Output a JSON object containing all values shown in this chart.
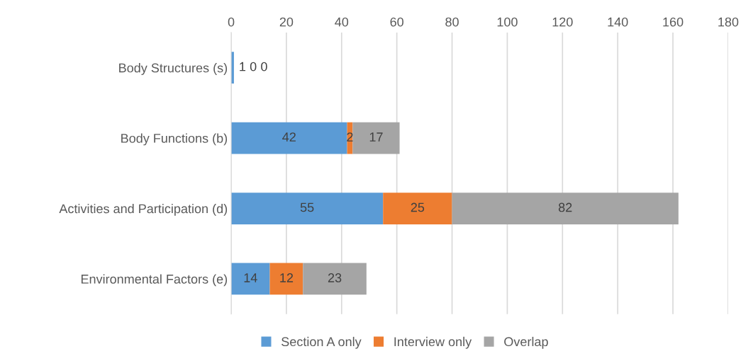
{
  "chart_data": {
    "type": "bar",
    "orientation": "horizontal",
    "stacked": true,
    "categories": [
      "Body Structures (s)",
      "Body Functions (b)",
      "Activities and Participation (d)",
      "Environmental Factors (e)"
    ],
    "series": [
      {
        "name": "Section A only",
        "color": "#5b9bd5",
        "values": [
          1,
          42,
          55,
          14
        ]
      },
      {
        "name": "Interview only",
        "color": "#ed7d31",
        "values": [
          0,
          2,
          25,
          12
        ]
      },
      {
        "name": "Overlap",
        "color": "#a5a5a5",
        "values": [
          0,
          17,
          82,
          23
        ]
      }
    ],
    "xlim": [
      0,
      180
    ],
    "xticks": [
      0,
      20,
      40,
      60,
      80,
      100,
      120,
      140,
      160,
      180
    ],
    "grid": "x",
    "legend": "bottom",
    "data_labels": true
  }
}
